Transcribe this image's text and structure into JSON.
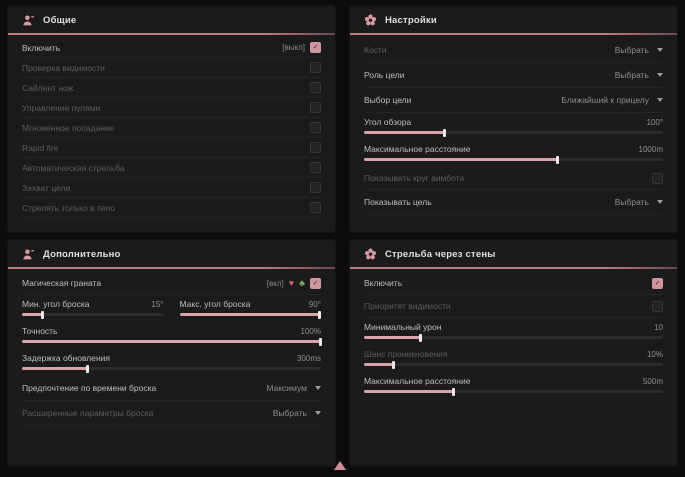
{
  "colors": {
    "accent": "#dba4ab",
    "panel": "#1b1b1b",
    "background": "#0c0c0c",
    "header_line": "#bd7b84"
  },
  "icons": {
    "check": "✓",
    "heart": "♥",
    "clover": "♣"
  },
  "panels": [
    {
      "title": "Общие",
      "icon": "person-icon",
      "rows": [
        {
          "type": "checkbox",
          "label": "Включить",
          "suffix": "[выкл]",
          "checked": true,
          "dim": false
        },
        {
          "type": "checkbox",
          "label": "Проверка видимости",
          "checked": false,
          "dim": true
        },
        {
          "type": "checkbox",
          "label": "Сайлент нож",
          "checked": false,
          "dim": true
        },
        {
          "type": "checkbox",
          "label": "Управление пулями",
          "checked": false,
          "dim": true
        },
        {
          "type": "checkbox",
          "label": "Мгновенное попадание",
          "checked": false,
          "dim": true
        },
        {
          "type": "checkbox",
          "label": "Rapid fire",
          "checked": false,
          "dim": true
        },
        {
          "type": "checkbox",
          "label": "Автоматическая стрельба",
          "checked": false,
          "dim": true
        },
        {
          "type": "checkbox",
          "label": "Захват цели",
          "checked": false,
          "dim": true
        },
        {
          "type": "checkbox",
          "label": "Стрелять только в тело",
          "checked": false,
          "dim": true
        }
      ]
    },
    {
      "title": "Настройки",
      "icon": "flower-icon",
      "rows": [
        {
          "type": "dropdown",
          "label": "Кости",
          "value": "Выбрать",
          "dim": true
        },
        {
          "type": "dropdown",
          "label": "Роль цели",
          "value": "Выбрать",
          "dim": false
        },
        {
          "type": "dropdown",
          "label": "Выбор цели",
          "value": "Ближайший к прицелу",
          "dim": false
        },
        {
          "type": "slider",
          "label": "Угол обзора",
          "value": "100°",
          "fill_pct": 27,
          "dim": false
        },
        {
          "type": "slider",
          "label": "Максимальное расстояние",
          "value": "1000m",
          "fill_pct": 65,
          "dim": false
        },
        {
          "type": "checkbox",
          "label": "Показывать круг аимбота",
          "checked": false,
          "dim": true
        },
        {
          "type": "dropdown",
          "label": "Показывать цель",
          "value": "Выбрать",
          "dim": false
        }
      ]
    },
    {
      "title": "Дополнительно",
      "icon": "person-icon",
      "rows": [
        {
          "type": "checkbox-icons",
          "label": "Магическая граната",
          "suffix": "[вкл]",
          "checked": true,
          "dim": false
        },
        {
          "type": "dual-slider",
          "left": {
            "label": "Мин. угол броска",
            "value": "15°",
            "fill_pct": 15
          },
          "right": {
            "label": "Макс. угол броска",
            "value": "90°",
            "fill_pct": 99
          }
        },
        {
          "type": "slider",
          "label": "Точность",
          "value": "100%",
          "fill_pct": 100,
          "dim": false
        },
        {
          "type": "slider",
          "label": "Задержка обновления",
          "value": "300ms",
          "fill_pct": 22,
          "dim": false
        },
        {
          "type": "dropdown",
          "label": "Предпочтение по времени броска",
          "value": "Максимум",
          "dim": false
        },
        {
          "type": "dropdown",
          "label": "Расширенные параметры броска",
          "value": "Выбрать",
          "dim": true
        }
      ]
    },
    {
      "title": "Стрельба через стены",
      "icon": "flower-icon",
      "rows": [
        {
          "type": "checkbox",
          "label": "Включить",
          "checked": true,
          "dim": false
        },
        {
          "type": "checkbox",
          "label": "Приоритет видимости",
          "checked": false,
          "dim": true
        },
        {
          "type": "slider",
          "label": "Минимальный урон",
          "value": "10",
          "fill_pct": 19,
          "dim": false
        },
        {
          "type": "slider",
          "label": "Шанс проникновения",
          "value": "10%",
          "fill_pct": 10,
          "dim": true
        },
        {
          "type": "slider",
          "label": "Максимальное расстояние",
          "value": "500m",
          "fill_pct": 30,
          "dim": false
        }
      ]
    }
  ]
}
